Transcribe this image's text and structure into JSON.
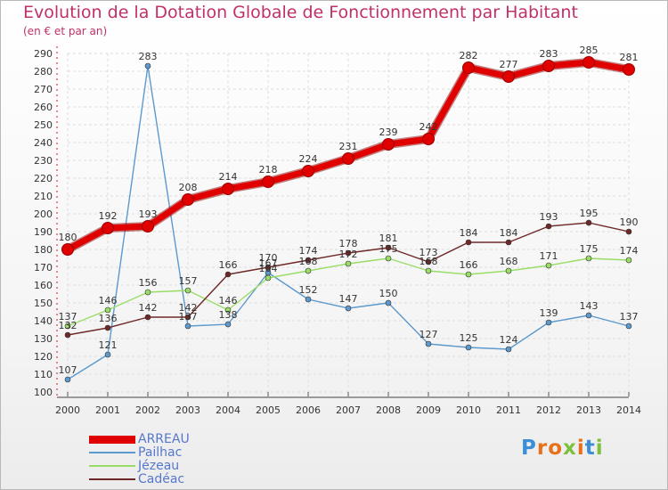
{
  "chart_data": {
    "type": "line",
    "title": "Evolution de la Dotation Globale de Fonctionnement par Habitant",
    "subtitle": "(en € et par an)",
    "x": [
      "2000",
      "2001",
      "2002",
      "2003",
      "2004",
      "2005",
      "2006",
      "2007",
      "2008",
      "2009",
      "2010",
      "2011",
      "2012",
      "2013",
      "2014"
    ],
    "ylim": [
      100,
      290
    ],
    "yticks": [
      100,
      110,
      120,
      130,
      140,
      150,
      160,
      170,
      180,
      190,
      200,
      210,
      220,
      230,
      240,
      250,
      260,
      270,
      280,
      290
    ],
    "grid": true,
    "legend_position": "bottom-left",
    "series": [
      {
        "name": "ARREAU",
        "color": "#e00000",
        "values": [
          180,
          192,
          193,
          208,
          214,
          218,
          224,
          231,
          239,
          242,
          282,
          277,
          283,
          285,
          281
        ]
      },
      {
        "name": "Pailhac",
        "color": "#5c99cc",
        "values": [
          107,
          121,
          283,
          137,
          138,
          167,
          152,
          147,
          150,
          127,
          125,
          124,
          139,
          143,
          137
        ]
      },
      {
        "name": "Jézeau",
        "color": "#99dd66",
        "values": [
          137,
          146,
          156,
          157,
          146,
          164,
          168,
          172,
          175,
          168,
          166,
          168,
          171,
          175,
          174
        ]
      },
      {
        "name": "Cadéac",
        "color": "#6e2828",
        "values": [
          132,
          136,
          142,
          142,
          166,
          170,
          174,
          178,
          181,
          173,
          184,
          184,
          193,
          195,
          190
        ]
      }
    ]
  },
  "logo": {
    "letters": [
      "P",
      "r",
      "o",
      "x",
      "i",
      "t",
      "i"
    ],
    "colors": [
      "#3c8fd6",
      "#e8701a",
      "#e8701a",
      "#7cc03c",
      "#e8701a",
      "#3c8fd6",
      "#7cc03c"
    ]
  }
}
